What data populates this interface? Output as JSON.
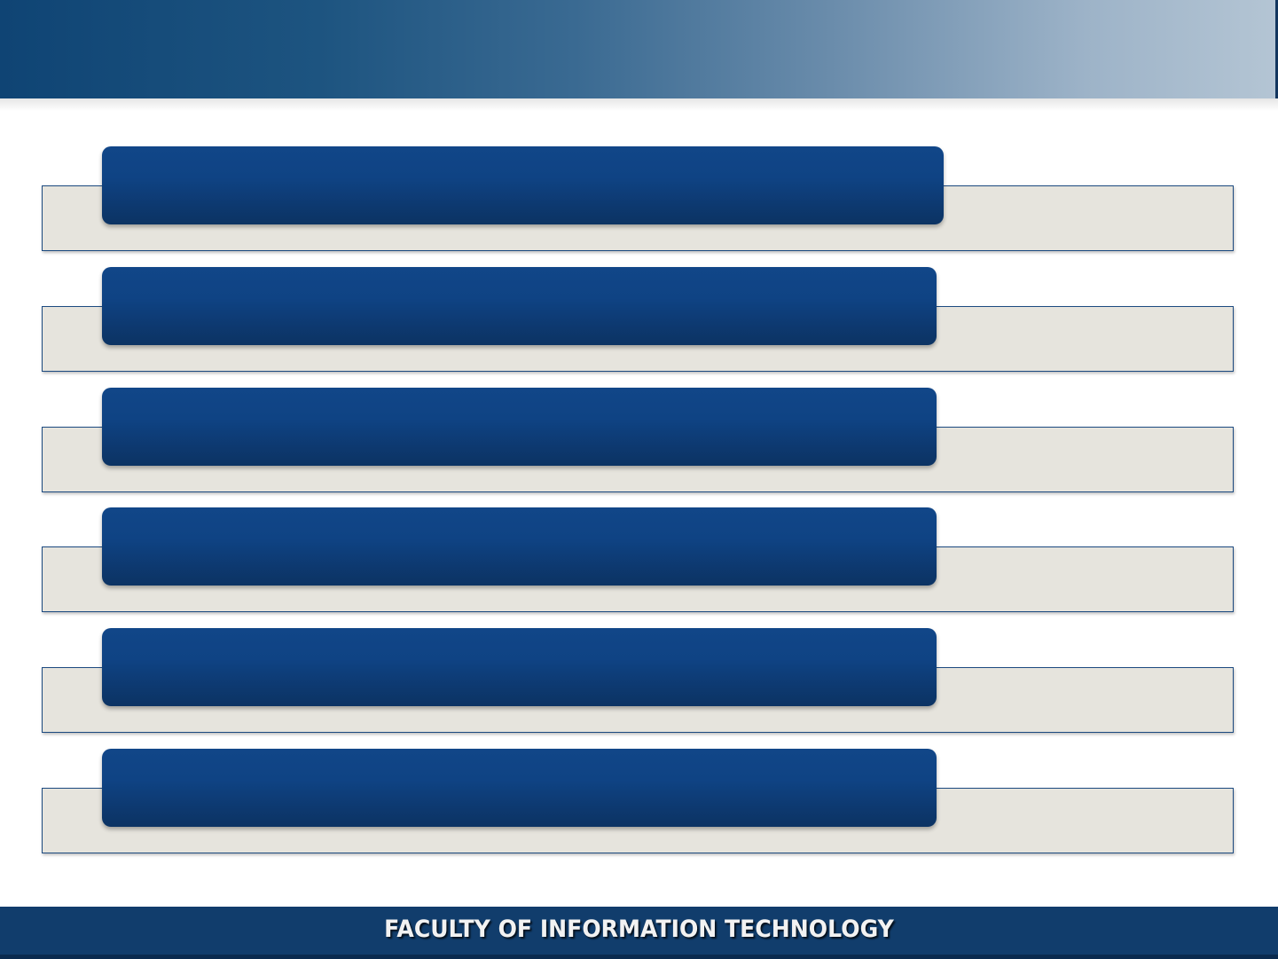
{
  "header": {
    "title": ""
  },
  "items": [
    {
      "label": "",
      "description": ""
    },
    {
      "label": "",
      "description": ""
    },
    {
      "label": "",
      "description": ""
    },
    {
      "label": "",
      "description": ""
    },
    {
      "label": "",
      "description": ""
    },
    {
      "label": "",
      "description": ""
    }
  ],
  "footer": {
    "text": "FACULTY OF INFORMATION TECHNOLOGY"
  },
  "colors": {
    "header_gradient_start": "#0f4474",
    "header_gradient_end": "#b4c5d4",
    "bar": "#0f4384",
    "tray_fill": "#e6e4dd",
    "tray_border": "#1c4a80",
    "footer": "#113d6c"
  }
}
